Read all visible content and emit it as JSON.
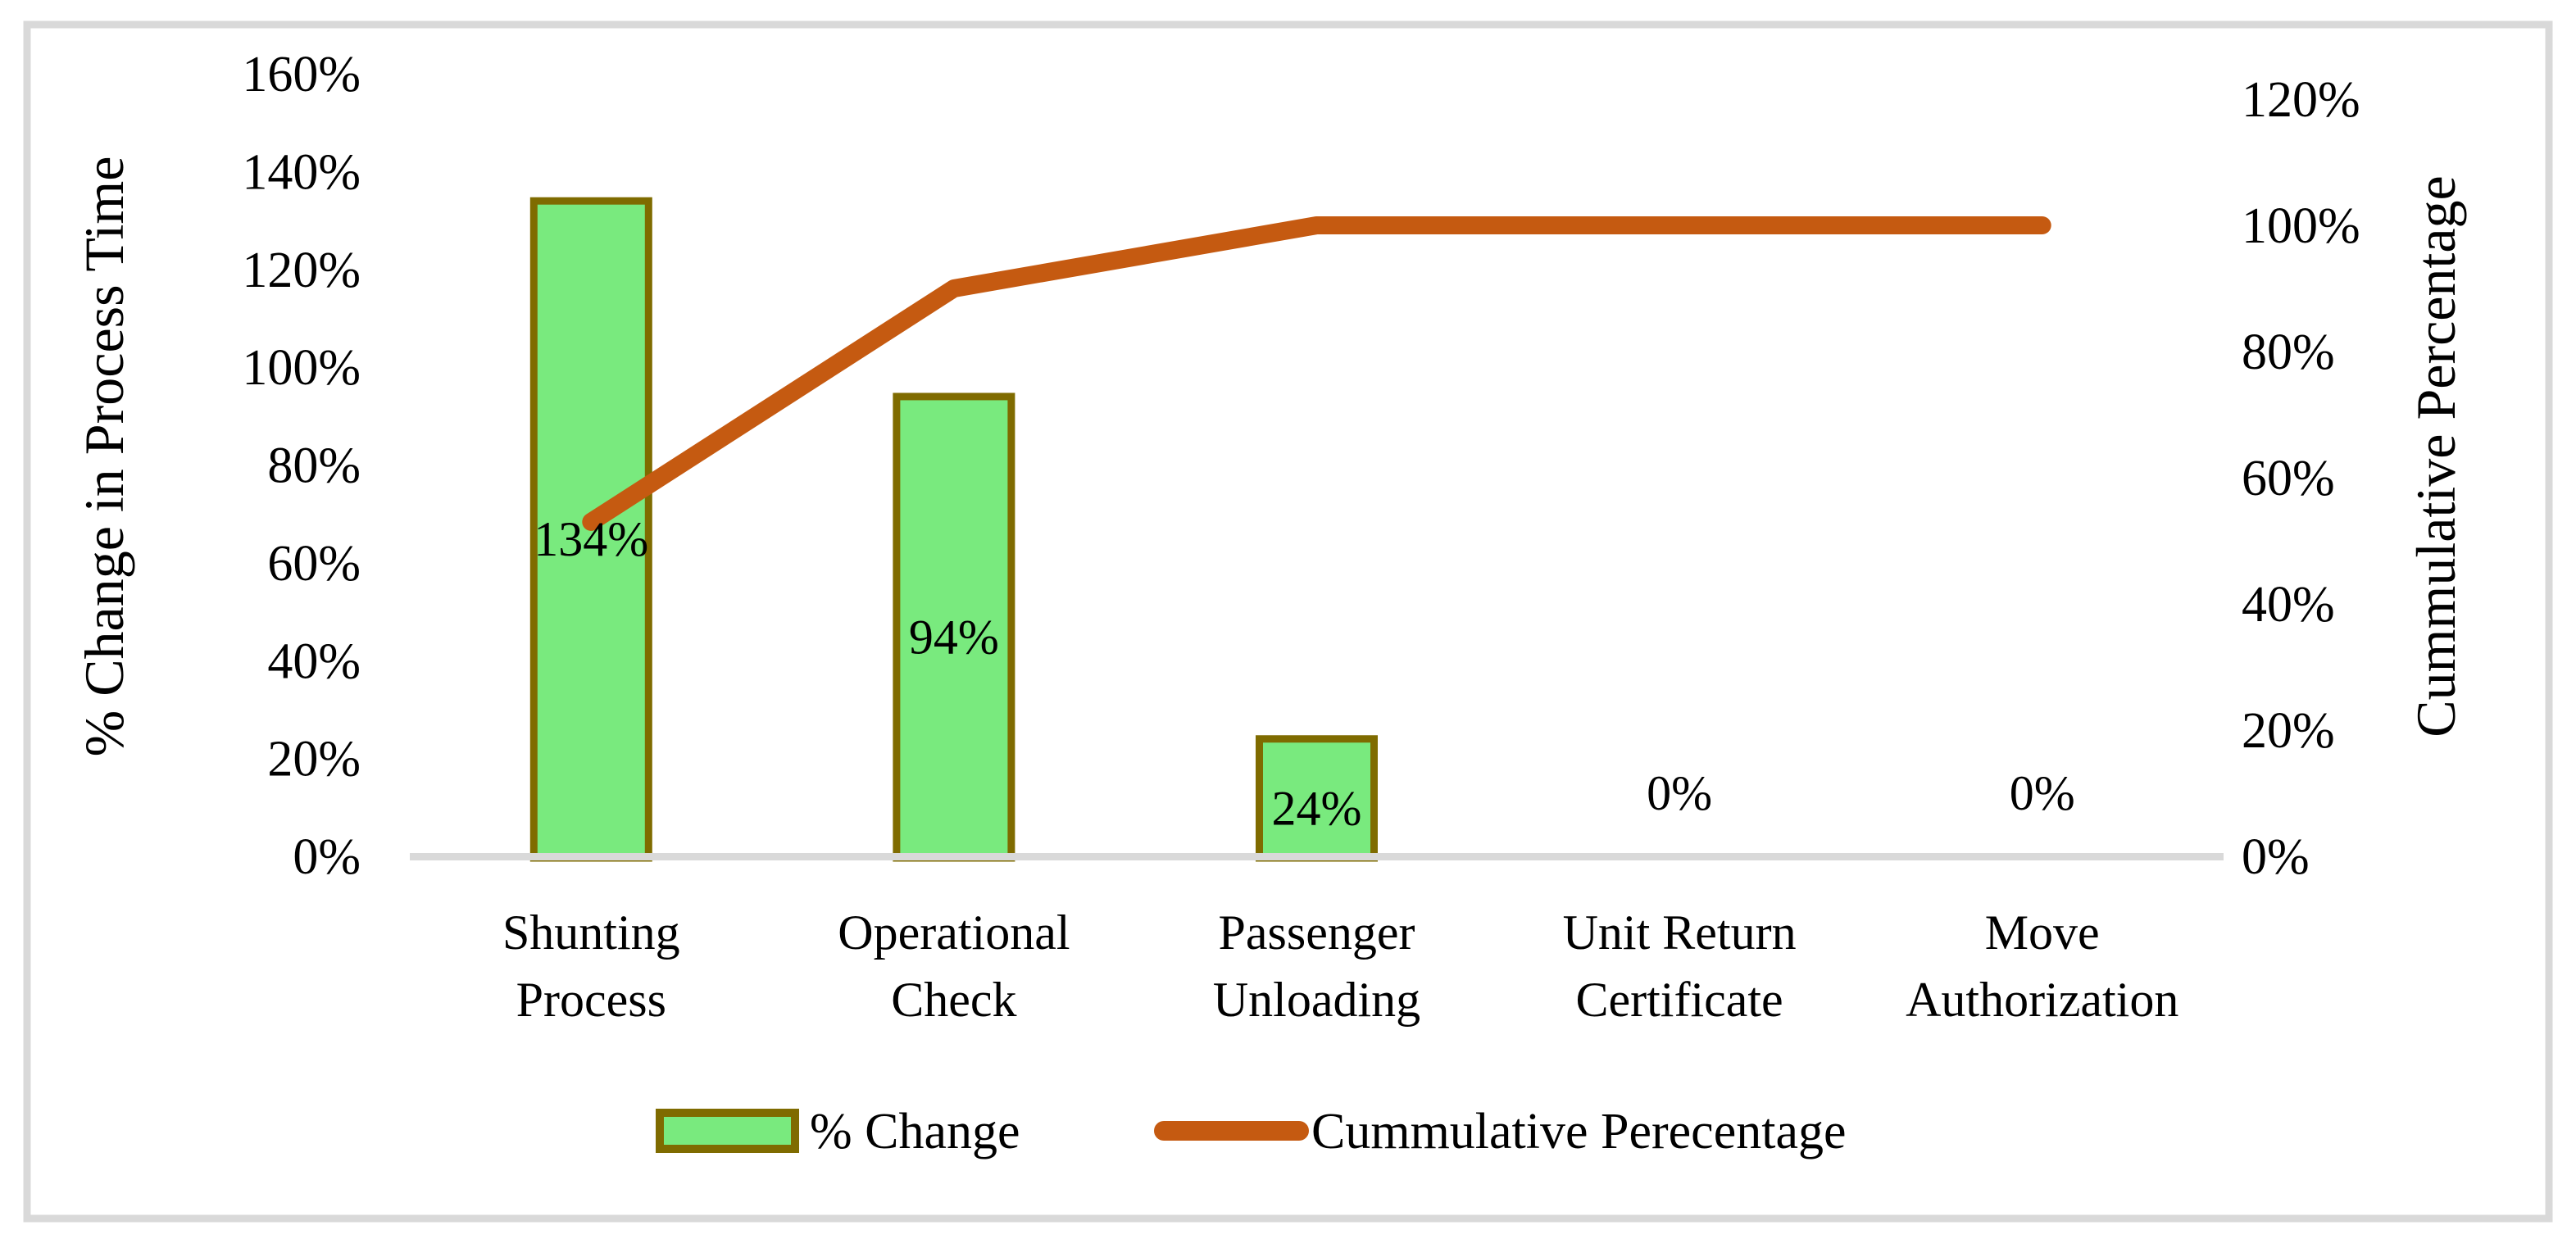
{
  "chart_data": {
    "type": "bar",
    "subtype": "pareto (column + cumulative line, dual axis)",
    "categories": [
      "Shunting Process",
      "Operational Check",
      "Passenger Unloading",
      "Unit Return Certificate",
      "Move Authorization"
    ],
    "category_lines": [
      [
        "Shunting",
        "Process"
      ],
      [
        "Operational",
        "Check"
      ],
      [
        "Passenger",
        "Unloading"
      ],
      [
        "Unit Return",
        "Certificate"
      ],
      [
        "Move",
        "Authorization"
      ]
    ],
    "series": [
      {
        "name": "% Change",
        "type": "bar",
        "axis": "left",
        "values": [
          134,
          94,
          24,
          0,
          0
        ],
        "data_labels": [
          "134%",
          "94%",
          "24%",
          "0%",
          "0%"
        ]
      },
      {
        "name": "Cummulative Perecentage",
        "type": "line",
        "axis": "right",
        "values": [
          53,
          90,
          100,
          100,
          100
        ]
      }
    ],
    "left_axis": {
      "title": "% Change in Process Time",
      "min": 0,
      "max": 160,
      "step": 20,
      "tick_labels": [
        "0%",
        "20%",
        "40%",
        "60%",
        "80%",
        "100%",
        "120%",
        "140%",
        "160%"
      ]
    },
    "right_axis": {
      "title": "Cummulative Percentage",
      "min": 0,
      "max": 120,
      "step": 20,
      "tick_labels": [
        "0%",
        "20%",
        "40%",
        "60%",
        "80%",
        "100%",
        "120%"
      ]
    },
    "legend": {
      "position": "bottom",
      "items": [
        {
          "label": "% Change",
          "swatch": "bar"
        },
        {
          "label": "Cummulative Perecentage",
          "swatch": "line"
        }
      ]
    },
    "grid": false,
    "colors": {
      "bar_fill": "#79EA7E",
      "bar_border": "#7F6B00",
      "line": "#C55A11",
      "axis_line": "#D9D9D9",
      "frame_border": "#D9D9D9",
      "text": "#000000",
      "background": "#FFFFFF"
    }
  }
}
